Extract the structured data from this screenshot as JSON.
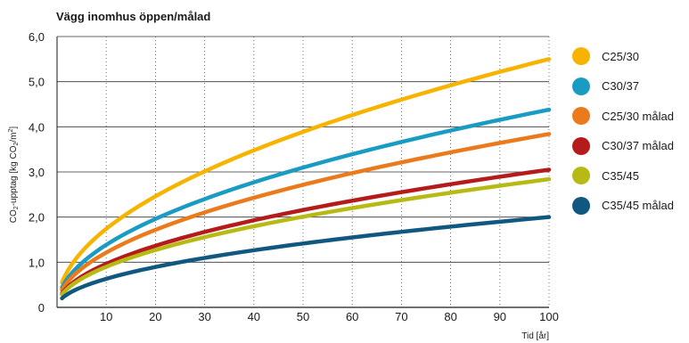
{
  "chart_data": {
    "type": "line",
    "title": "Vägg inomhus öppen/målad",
    "xlabel": "Tid [år]",
    "ylabel_main": "CO",
    "ylabel_sub": "2",
    "ylabel_mid": "-upptag [kg CO",
    "ylabel_sub2": "2",
    "ylabel_end": "/m",
    "ylabel_sup": "2",
    "ylabel_close": "]",
    "xlim": [
      0,
      100
    ],
    "ylim": [
      0,
      6
    ],
    "x_ticks": [
      10,
      20,
      30,
      40,
      50,
      60,
      70,
      80,
      90,
      100
    ],
    "x_tick_labels": [
      "10",
      "20",
      "30",
      "40",
      "50",
      "60",
      "70",
      "80",
      "90",
      "100"
    ],
    "y_ticks": [
      0,
      1,
      2,
      3,
      4,
      5,
      6
    ],
    "y_tick_labels": [
      "0",
      "1,0",
      "2,0",
      "3,0",
      "4,0",
      "5,0",
      "6,0"
    ],
    "x_start": 1,
    "grid": {
      "horizontal": true,
      "vertical_dotted": true
    },
    "legend_position": "right",
    "series": [
      {
        "name": "C25/30",
        "color": "#f6b400",
        "value_at_100": 5.5
      },
      {
        "name": "C30/37",
        "color": "#1a9bc2",
        "value_at_100": 4.38
      },
      {
        "name": "C25/30 målad",
        "color": "#eb7a1c",
        "value_at_100": 3.84
      },
      {
        "name": "C30/37 målad",
        "color": "#b51b1b",
        "value_at_100": 3.05
      },
      {
        "name": "C35/45",
        "color": "#b7ba14",
        "value_at_100": 2.84
      },
      {
        "name": "C35/45 målad",
        "color": "#10587f",
        "value_at_100": 2.0
      }
    ]
  }
}
